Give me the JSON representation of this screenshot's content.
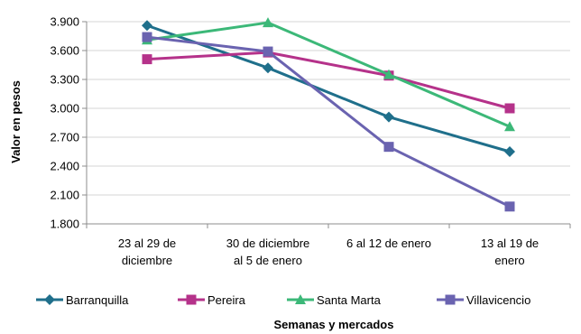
{
  "chart_data": {
    "type": "line",
    "title": "",
    "xlabel": "Semanas y mercados",
    "ylabel": "Valor en pesos",
    "ylim": [
      1800,
      3900
    ],
    "yticks": [
      {
        "value": 1800,
        "label": "1.800"
      },
      {
        "value": 2100,
        "label": "2.100"
      },
      {
        "value": 2400,
        "label": "2.400"
      },
      {
        "value": 2700,
        "label": "2.700"
      },
      {
        "value": 3000,
        "label": "3.000"
      },
      {
        "value": 3300,
        "label": "3.300"
      },
      {
        "value": 3600,
        "label": "3.600"
      },
      {
        "value": 3900,
        "label": "3.900"
      }
    ],
    "grid": true,
    "legend_position": "bottom",
    "categories": [
      [
        "23 al 29 de",
        "diciembre"
      ],
      [
        "30 de diciembre",
        "al 5 de enero"
      ],
      [
        "6 al 12 de enero"
      ],
      [
        "13 al 19 de",
        "enero"
      ]
    ],
    "series": [
      {
        "name": "Barranquilla",
        "color": "#1f6f8b",
        "marker": "diamond",
        "values": [
          3860,
          3420,
          2910,
          2550
        ]
      },
      {
        "name": "Pereira",
        "color": "#b5328a",
        "marker": "square",
        "values": [
          3510,
          3580,
          3340,
          3000
        ]
      },
      {
        "name": "Santa Marta",
        "color": "#3cb878",
        "marker": "triangle",
        "values": [
          3710,
          3890,
          3350,
          2810
        ]
      },
      {
        "name": "Villavicencio",
        "color": "#6a63b0",
        "marker": "square",
        "values": [
          3740,
          3590,
          2600,
          1980
        ]
      }
    ]
  }
}
